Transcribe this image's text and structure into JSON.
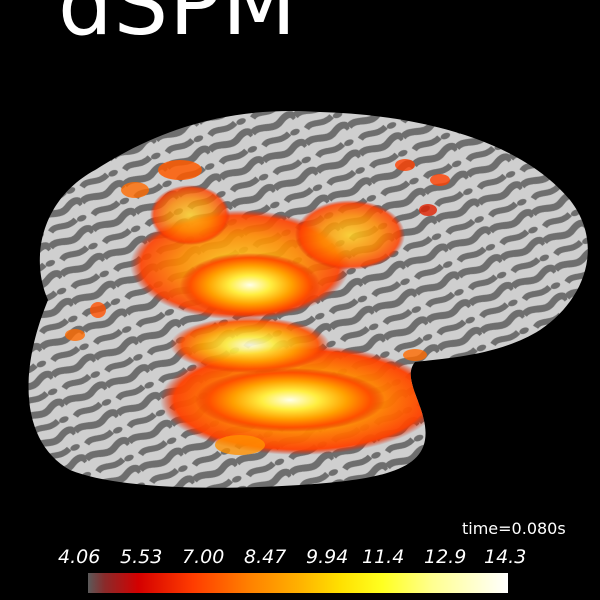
{
  "title": "dSPM",
  "time_label": "time=0.080s",
  "colorbar": {
    "ticks": [
      "4.06",
      "5.53",
      "7.00",
      "8.47",
      "9.94",
      "11.4",
      "12.9",
      "14.3"
    ],
    "colors": {
      "low": "#5a5a5a",
      "mid_red": "#d40000",
      "mid_orange": "#ff7f00",
      "mid_yellow": "#ffff20",
      "high": "#ffffff"
    }
  },
  "background_color": "#000000",
  "surface_colors": {
    "gyri": "#cfcfcf",
    "sulci": "#6e6e6e"
  }
}
